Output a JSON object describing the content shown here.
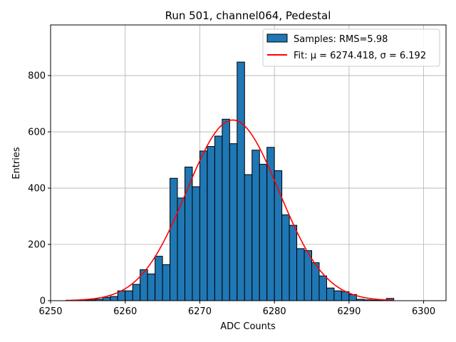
{
  "chart_data": {
    "type": "histogram",
    "title": "Run 501, channel064, Pedestal",
    "xlabel": "ADC Counts",
    "ylabel": "Entries",
    "xlim": [
      6250,
      6303
    ],
    "ylim": [
      0,
      980
    ],
    "xticks": [
      6250,
      6260,
      6270,
      6280,
      6290,
      6300
    ],
    "yticks": [
      0,
      200,
      400,
      600,
      800
    ],
    "grid": true,
    "bar_color": "#1f77b4",
    "bar_edge_color": "#000000",
    "fit_color": "#ff0000",
    "bins": [
      6254,
      6255,
      6256,
      6257,
      6258,
      6259,
      6260,
      6261,
      6262,
      6263,
      6264,
      6265,
      6266,
      6267,
      6268,
      6269,
      6270,
      6271,
      6272,
      6273,
      6274,
      6275,
      6276,
      6277,
      6278,
      6279,
      6280,
      6281,
      6282,
      6283,
      6284,
      6285,
      6286,
      6287,
      6288,
      6289,
      6290,
      6291,
      6292,
      6293,
      6294,
      6295
    ],
    "counts": [
      2,
      3,
      5,
      12,
      15,
      35,
      35,
      58,
      110,
      95,
      158,
      128,
      435,
      365,
      475,
      405,
      532,
      548,
      585,
      645,
      558,
      848,
      448,
      535,
      485,
      545,
      462,
      305,
      268,
      185,
      178,
      135,
      88,
      45,
      35,
      32,
      22,
      5,
      3,
      2,
      2,
      8
    ],
    "fit": {
      "mu": 6274.418,
      "sigma": 6.192,
      "amplitude": 642,
      "x_range": [
        6252,
        6296
      ]
    },
    "legend": {
      "position": "upper right",
      "samples_label": "Samples: RMS=5.98",
      "fit_label": "Fit: μ = 6274.418, σ = 6.192"
    }
  }
}
